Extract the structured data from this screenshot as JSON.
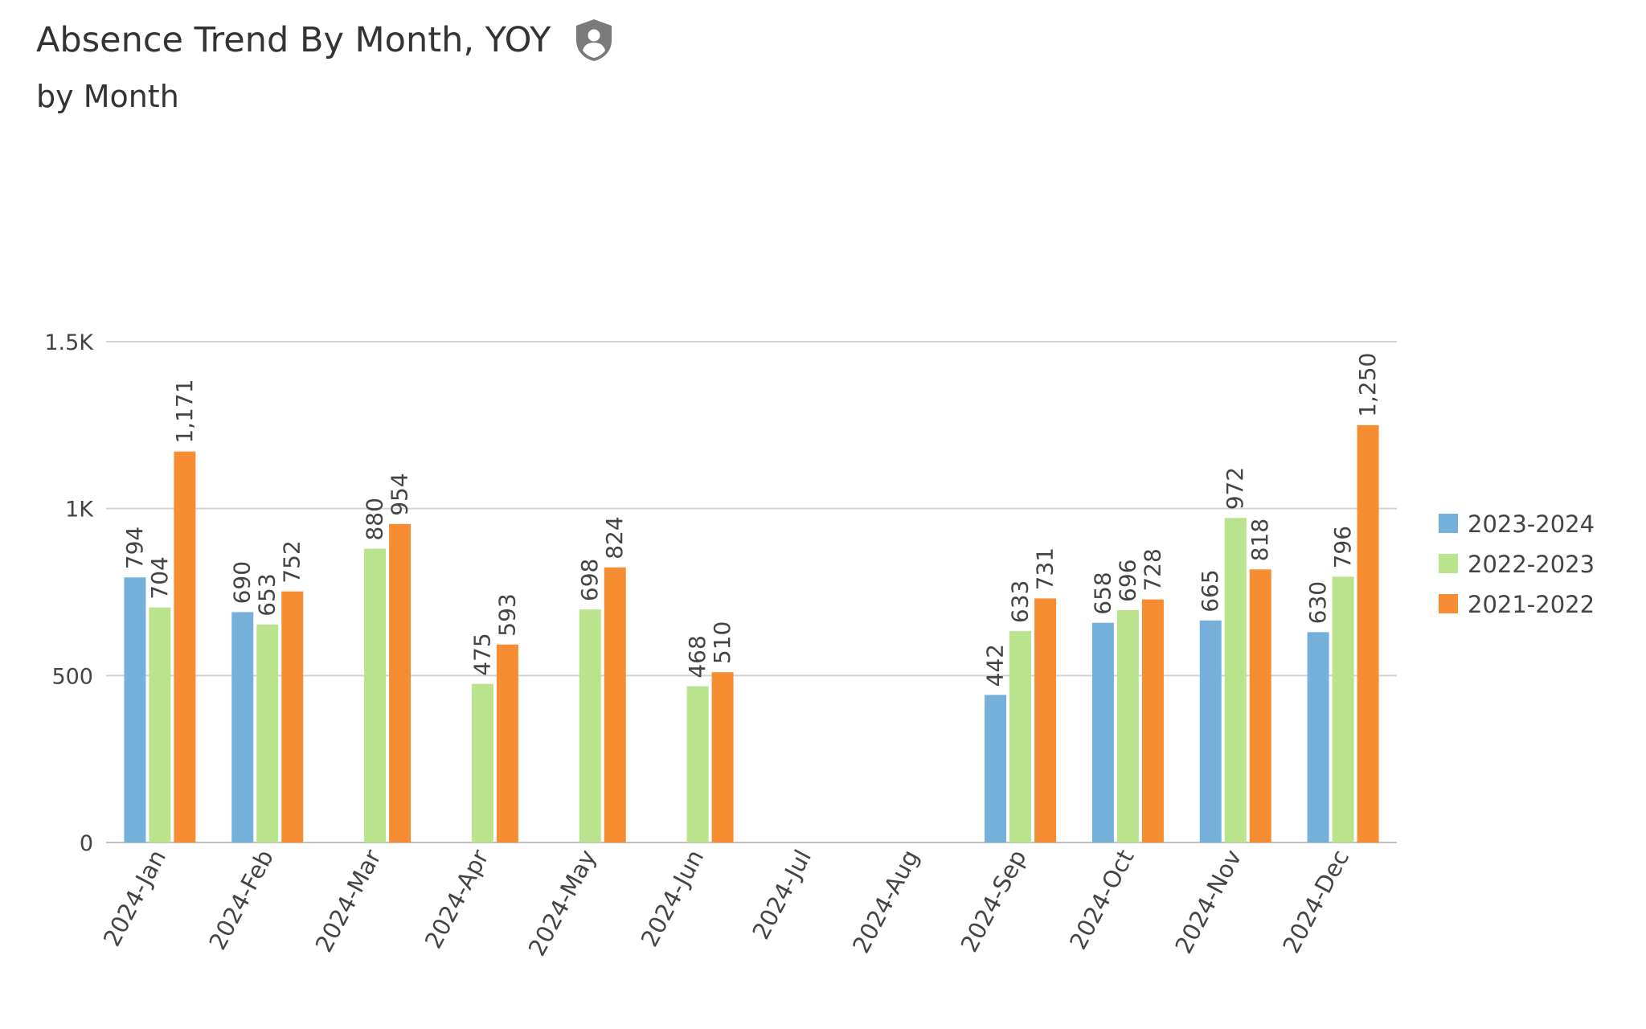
{
  "header": {
    "title": "Absence Trend By Month, YOY",
    "subtitle": "by Month",
    "icon": "user-shield-icon"
  },
  "chart_data": {
    "type": "bar",
    "title": "Absence Trend By Month, YOY",
    "subtitle": "by Month",
    "categories": [
      "2024-Jan",
      "2024-Feb",
      "2024-Mar",
      "2024-Apr",
      "2024-May",
      "2024-Jun",
      "2024-Jul",
      "2024-Aug",
      "2024-Sep",
      "2024-Oct",
      "2024-Nov",
      "2024-Dec"
    ],
    "series": [
      {
        "name": "2023-2024",
        "color": "#74b0d9",
        "values": [
          794,
          690,
          null,
          null,
          null,
          null,
          null,
          null,
          442,
          658,
          665,
          630
        ]
      },
      {
        "name": "2022-2023",
        "color": "#b9e38c",
        "values": [
          704,
          653,
          880,
          475,
          698,
          468,
          null,
          null,
          633,
          696,
          972,
          796
        ]
      },
      {
        "name": "2021-2022",
        "color": "#f78d32",
        "values": [
          1171,
          752,
          954,
          593,
          824,
          510,
          null,
          null,
          731,
          728,
          818,
          1250
        ]
      }
    ],
    "data_labels": {
      "2023-2024": [
        "794",
        "690",
        "",
        "",
        "",
        "",
        "",
        "",
        "442",
        "658",
        "665",
        "630"
      ],
      "2022-2023": [
        "704",
        "653",
        "880",
        "475",
        "698",
        "468",
        "",
        "",
        "633",
        "696",
        "972",
        "796"
      ],
      "2021-2022": [
        "1,171",
        "752",
        "954",
        "593",
        "824",
        "510",
        "",
        "",
        "731",
        "728",
        "818",
        "1,250"
      ]
    },
    "yticks": [
      0,
      500,
      1000,
      1500
    ],
    "ytick_labels": [
      "0",
      "500",
      "1K",
      "1.5K"
    ],
    "ylim": [
      0,
      1500
    ],
    "grid": true,
    "legend_position": "right"
  }
}
